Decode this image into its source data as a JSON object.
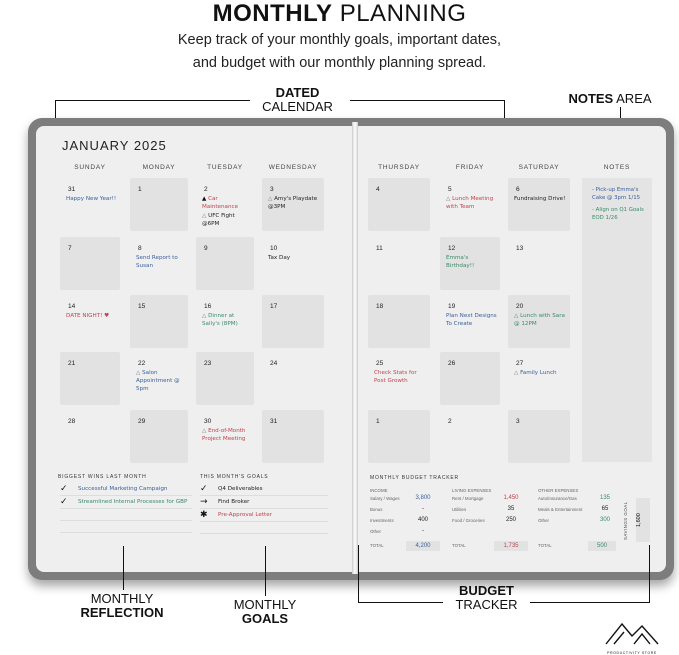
{
  "header": {
    "title_bold": "MONTHLY",
    "title_light": "PLANNING",
    "subtitle_line1": "Keep track of your monthly goals, important dates,",
    "subtitle_line2": "and budget with our monthly planning spread."
  },
  "callouts": {
    "calendar": {
      "bold": "DATED",
      "light": "CALENDAR"
    },
    "notes": {
      "bold": "NOTES",
      "light": "AREA"
    },
    "reflection": {
      "light": "MONTHLY",
      "bold": "REFLECTION"
    },
    "goals": {
      "light": "MONTHLY",
      "bold": "GOALS"
    },
    "budget": {
      "bold": "BUDGET",
      "light": "TRACKER"
    }
  },
  "calendar": {
    "month": "JANUARY 2025",
    "left_days": [
      "SUNDAY",
      "MONDAY",
      "TUESDAY",
      "WEDNESDAY"
    ],
    "right_days": [
      "THURSDAY",
      "FRIDAY",
      "SATURDAY"
    ],
    "notes_label": "NOTES",
    "left_weeks": [
      [
        {
          "d": "31",
          "ev": [
            {
              "t": "Happy New Year!!",
              "c": "#3a5f9c"
            }
          ]
        },
        {
          "d": "1",
          "ev": []
        },
        {
          "d": "2",
          "ev": [
            {
              "t": "Car Maintenance",
              "c": "#c0444f",
              "i": "▲"
            },
            {
              "t": "UFC Fight @6PM",
              "c": "#222",
              "i": "△"
            }
          ]
        },
        {
          "d": "3",
          "ev": [
            {
              "t": "Amy's Playdate @3PM",
              "c": "#222",
              "i": "△"
            }
          ]
        }
      ],
      [
        {
          "d": "7",
          "ev": []
        },
        {
          "d": "8",
          "ev": [
            {
              "t": "Send Report to Susan",
              "c": "#3a5f9c"
            }
          ]
        },
        {
          "d": "9",
          "ev": []
        },
        {
          "d": "10",
          "ev": [
            {
              "t": "Tax Day",
              "c": "#222"
            }
          ]
        }
      ],
      [
        {
          "d": "14",
          "ev": [
            {
              "t": "DATE NIGHT! ♥",
              "c": "#c0444f"
            }
          ]
        },
        {
          "d": "15",
          "ev": []
        },
        {
          "d": "16",
          "ev": [
            {
              "t": "Dinner at Sally's (8PM)",
              "c": "#3a8a6a",
              "i": "△"
            }
          ]
        },
        {
          "d": "17",
          "ev": []
        }
      ],
      [
        {
          "d": "21",
          "ev": []
        },
        {
          "d": "22",
          "ev": [
            {
              "t": "Salon Appointment @ 5pm",
              "c": "#3a5f9c",
              "i": "△"
            }
          ]
        },
        {
          "d": "23",
          "ev": []
        },
        {
          "d": "24",
          "ev": []
        }
      ],
      [
        {
          "d": "28",
          "ev": []
        },
        {
          "d": "29",
          "ev": []
        },
        {
          "d": "30",
          "ev": [
            {
              "t": "End-of-Month Project Meeting",
              "c": "#c0444f",
              "i": "△"
            }
          ]
        },
        {
          "d": "31",
          "ev": []
        }
      ]
    ],
    "right_weeks": [
      [
        {
          "d": "4",
          "ev": []
        },
        {
          "d": "5",
          "ev": [
            {
              "t": "Lunch Meeting with Team",
              "c": "#c0444f",
              "i": "△"
            }
          ]
        },
        {
          "d": "6",
          "ev": [
            {
              "t": "Fundraising Drive!",
              "c": "#222"
            }
          ]
        }
      ],
      [
        {
          "d": "11",
          "ev": []
        },
        {
          "d": "12",
          "ev": [
            {
              "t": "Emma's Birthday!!",
              "c": "#3a8a6a"
            }
          ]
        },
        {
          "d": "13",
          "ev": []
        }
      ],
      [
        {
          "d": "18",
          "ev": []
        },
        {
          "d": "19",
          "ev": [
            {
              "t": "Plan Next Designs To Create",
              "c": "#3a5f9c"
            }
          ]
        },
        {
          "d": "20",
          "ev": [
            {
              "t": "Lunch with Sara @ 12PM",
              "c": "#3a8a6a",
              "i": "△"
            }
          ]
        }
      ],
      [
        {
          "d": "25",
          "ev": [
            {
              "t": "Check Stats for Post Growth",
              "c": "#c0444f"
            }
          ]
        },
        {
          "d": "26",
          "ev": []
        },
        {
          "d": "27",
          "ev": [
            {
              "t": "Family Lunch",
              "c": "#3a5f9c",
              "i": "△"
            }
          ]
        }
      ],
      [
        {
          "d": "1",
          "ev": []
        },
        {
          "d": "2",
          "ev": []
        },
        {
          "d": "3",
          "ev": []
        }
      ]
    ],
    "notes": [
      {
        "t": "- Pick-up Emma's Cake @ 3pm 1/15",
        "c": "#3a5f9c"
      },
      {
        "t": "- Align on Q1 Goals EOD 1/26",
        "c": "#3a8a6a"
      }
    ]
  },
  "wins": {
    "label": "BIGGEST WINS LAST MONTH",
    "items": [
      {
        "mark": "✓",
        "t": "Successful Marketing Campaign",
        "c": "#3a5f9c"
      },
      {
        "mark": "✓",
        "t": "Streamlined Internal Processes for GBP",
        "c": "#3a8a6a"
      },
      {
        "mark": "",
        "t": "",
        "c": "#222"
      },
      {
        "mark": "",
        "t": "",
        "c": "#222"
      }
    ]
  },
  "goals": {
    "label": "THIS MONTH'S GOALS",
    "items": [
      {
        "mark": "✓",
        "t": "Q4 Deliverables",
        "c": "#222"
      },
      {
        "mark": "→",
        "t": "Find Broker",
        "c": "#222"
      },
      {
        "mark": "✱",
        "t": "Pre-Approval Letter",
        "c": "#c0444f"
      },
      {
        "mark": "",
        "t": "",
        "c": "#222"
      }
    ]
  },
  "budget": {
    "title": "MONTHLY BUDGET TRACKER",
    "income": {
      "label": "INCOME",
      "rows": [
        [
          "Salary / Wages",
          "3,800"
        ],
        [
          "Bonus",
          "-"
        ],
        [
          "Investments",
          "400"
        ],
        [
          "Other",
          "-"
        ]
      ],
      "total": "4,200",
      "color": "#3a5f9c"
    },
    "living": {
      "label": "LIVING EXPENSES",
      "rows": [
        [
          "Rent / Mortgage",
          "1,450"
        ],
        [
          "Utilities",
          "35"
        ],
        [
          "Food / Groceries",
          "250"
        ]
      ],
      "total": "1,735",
      "color": "#c0444f"
    },
    "other": {
      "label": "OTHER EXPENSES",
      "rows": [
        [
          "Auto/Insurance/Gas",
          "135"
        ],
        [
          "Meals & Entertainment",
          "65"
        ],
        [
          "Other",
          "300"
        ]
      ],
      "total": "500",
      "color": "#3a8a6a"
    },
    "total_label": "TOTAL",
    "savings_label": "SAVINGS GOAL",
    "savings": "1,600"
  },
  "brand": {
    "name": "PRODUCTIVITY STORE"
  }
}
